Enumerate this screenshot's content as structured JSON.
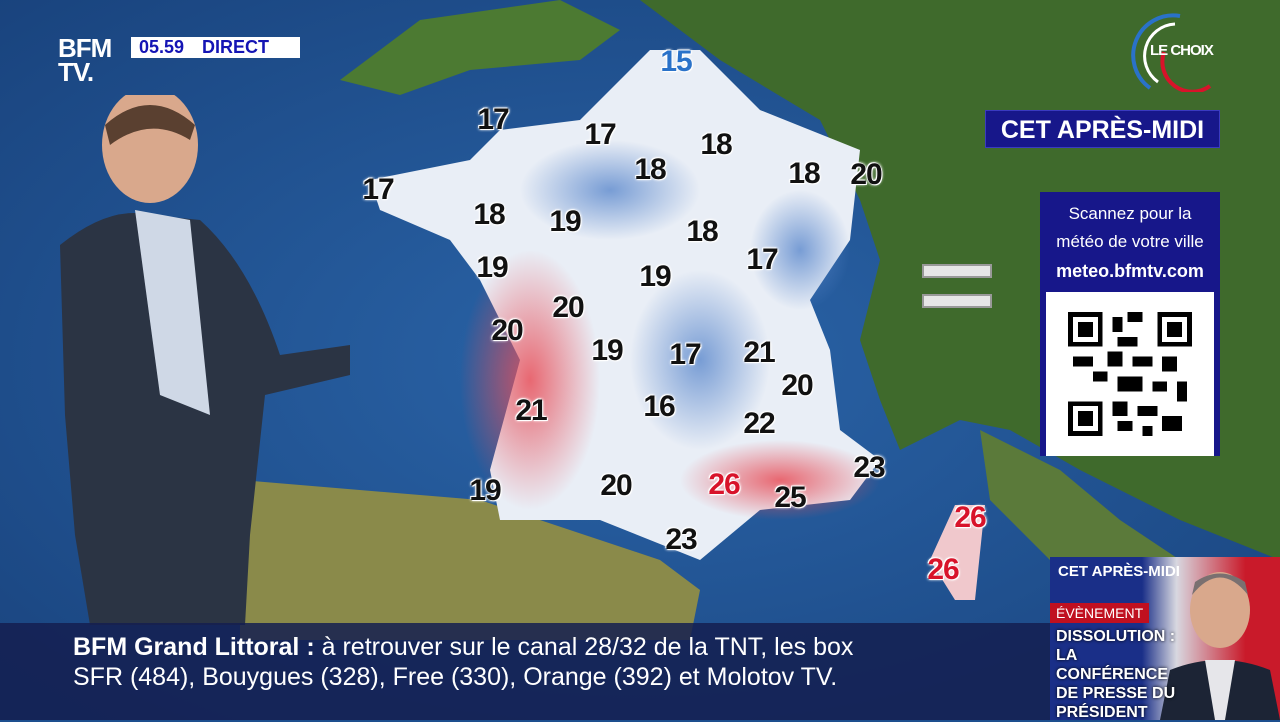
{
  "channel": {
    "logo": "BFM TV.",
    "time": "05.59",
    "live_label": "DIRECT",
    "program_logo": "LE CHOIX"
  },
  "forecast": {
    "period": "CET APRÈS-MIDI",
    "temperatures": [
      {
        "value": "15",
        "tone": "cool"
      },
      {
        "value": "17",
        "tone": "normal"
      },
      {
        "value": "17",
        "tone": "normal"
      },
      {
        "value": "18",
        "tone": "normal"
      },
      {
        "value": "18",
        "tone": "normal"
      },
      {
        "value": "18",
        "tone": "normal"
      },
      {
        "value": "20",
        "tone": "normal"
      },
      {
        "value": "17",
        "tone": "normal"
      },
      {
        "value": "18",
        "tone": "normal"
      },
      {
        "value": "19",
        "tone": "normal"
      },
      {
        "value": "18",
        "tone": "normal"
      },
      {
        "value": "17",
        "tone": "normal"
      },
      {
        "value": "19",
        "tone": "normal"
      },
      {
        "value": "19",
        "tone": "normal"
      },
      {
        "value": "20",
        "tone": "normal"
      },
      {
        "value": "20",
        "tone": "normal"
      },
      {
        "value": "19",
        "tone": "normal"
      },
      {
        "value": "17",
        "tone": "normal"
      },
      {
        "value": "21",
        "tone": "normal"
      },
      {
        "value": "20",
        "tone": "normal"
      },
      {
        "value": "21",
        "tone": "normal"
      },
      {
        "value": "16",
        "tone": "normal"
      },
      {
        "value": "22",
        "tone": "normal"
      },
      {
        "value": "23",
        "tone": "normal"
      },
      {
        "value": "26",
        "tone": "warm"
      },
      {
        "value": "25",
        "tone": "normal"
      },
      {
        "value": "19",
        "tone": "normal"
      },
      {
        "value": "20",
        "tone": "normal"
      },
      {
        "value": "23",
        "tone": "normal"
      },
      {
        "value": "26",
        "tone": "warm"
      },
      {
        "value": "26",
        "tone": "warm"
      }
    ]
  },
  "qr_panel": {
    "line1": "Scannez pour la",
    "line2": "météo de votre ville",
    "url": "meteo.bfmtv.com"
  },
  "ticker": {
    "title": "BFM Grand Littoral :",
    "line1": "à retrouver sur le canal 28/32 de la TNT, les box",
    "line2": "SFR (484), Bouygues (328), Free (330), Orange (392) et Molotov TV."
  },
  "promo": {
    "period": "CET APRÈS-MIDI",
    "tag": "ÉVÈNEMENT",
    "title": "DISSOLUTION : LA CONFÉRENCE DE PRESSE DU PRÉSIDENT"
  },
  "colors": {
    "sea": "#1d4f8e",
    "warm": "#d8132a",
    "cool": "#2a72c9",
    "panel": "#17178a"
  }
}
